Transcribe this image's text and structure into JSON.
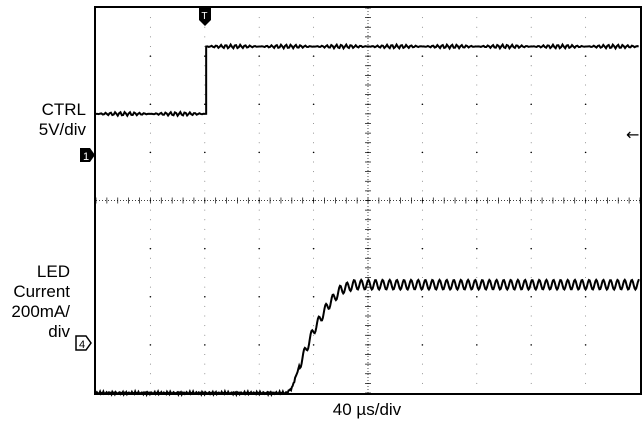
{
  "chart_data": {
    "type": "line",
    "title": "",
    "xlabel": "40 µs/div",
    "grid": true,
    "divisions": {
      "x": 10,
      "y": 8
    },
    "x_unit": "µs",
    "x_per_div": 40,
    "trigger_marker": "T",
    "channels": [
      {
        "id": "1",
        "label_lines": [
          "CTRL",
          "5V/div"
        ],
        "volts_per_div_text": "5V/div",
        "marker_style": "filled",
        "baseline_div": 1.8,
        "points_div": [
          [
            0,
            1.8
          ],
          [
            4.05,
            1.8
          ],
          [
            4.05,
            3.2
          ],
          [
            20,
            3.2
          ]
        ],
        "description": "step at ~4 div from low to high (~7V)"
      },
      {
        "id": "4",
        "label_lines": [
          "LED",
          "Current",
          "200mA/",
          "div"
        ],
        "marker_style": "outlined",
        "baseline_div": -4.0,
        "points_div": [
          [
            0,
            -4.0
          ],
          [
            7.0,
            -4.0
          ],
          [
            7.2,
            -3.9
          ],
          [
            7.5,
            -3.4
          ],
          [
            8.0,
            -2.7
          ],
          [
            8.5,
            -2.2
          ],
          [
            9.0,
            -1.85
          ],
          [
            9.5,
            -1.75
          ],
          [
            20,
            -1.75
          ]
        ],
        "ripple_div": 0.1,
        "description": "current ramps from 0 to ~450 mA, settles with ripple"
      }
    ]
  },
  "markers": {
    "ch1": "1",
    "ch4": "4",
    "trigger": "T",
    "right_arrow": "←"
  }
}
